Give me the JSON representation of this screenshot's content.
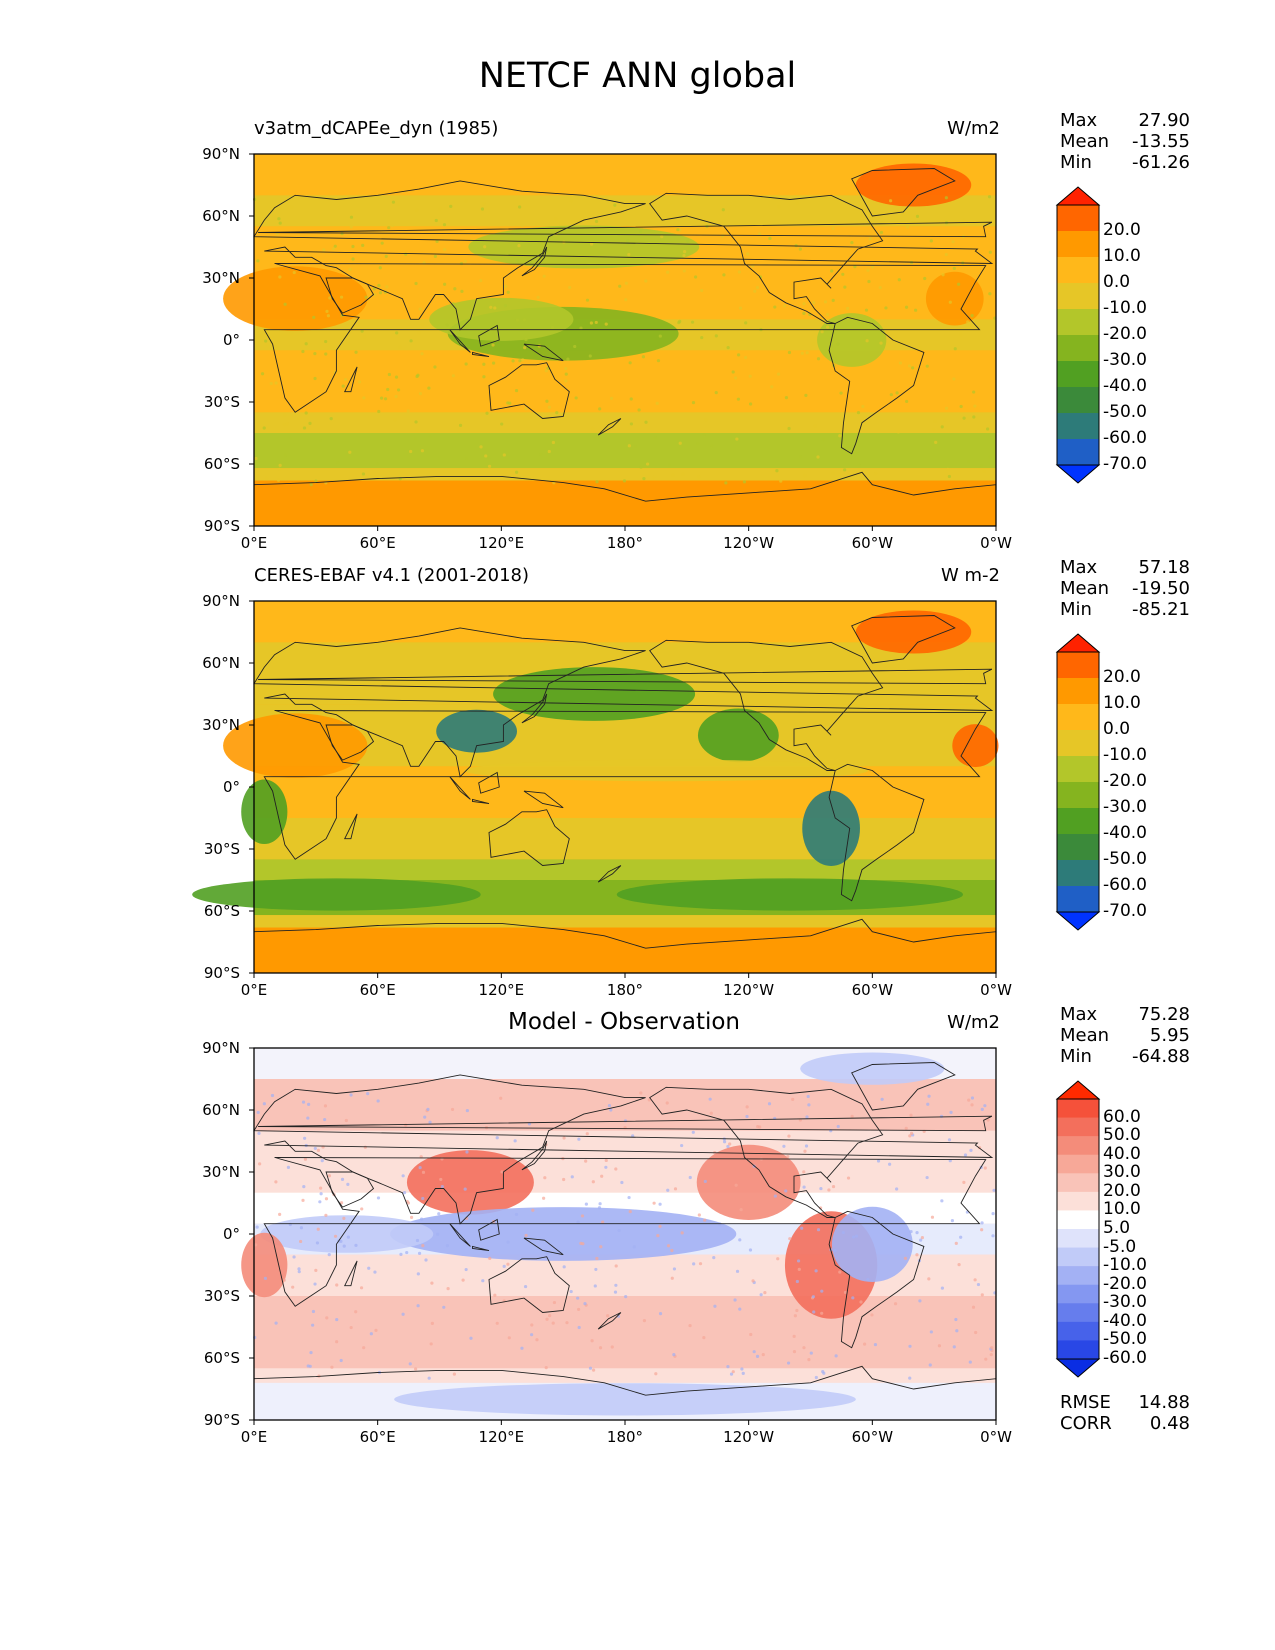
{
  "title": "NETCF ANN global",
  "axes": {
    "lat_ticks": [
      "90°N",
      "60°N",
      "30°N",
      "0°",
      "30°S",
      "60°S",
      "90°S"
    ],
    "lon_ticks": [
      "0°E",
      "60°E",
      "120°E",
      "180°",
      "120°W",
      "60°W",
      "0°W"
    ]
  },
  "panels": [
    {
      "title": "v3atm_dCAPEe_dyn (1985)",
      "title_position": "left",
      "units": "W/m2",
      "stats": [
        {
          "label": "Max",
          "value": "27.90"
        },
        {
          "label": "Mean",
          "value": "-13.55"
        },
        {
          "label": "Min",
          "value": "-61.26"
        }
      ],
      "colorbar_labels": [
        "20.0",
        "10.0",
        "0.0",
        "-10.0",
        "-20.0",
        "-30.0",
        "-40.0",
        "-50.0",
        "-60.0",
        "-70.0"
      ],
      "colorbar_colors": [
        "#ff2200",
        "#ff6600",
        "#ff9900",
        "#ffb81a",
        "#e6c627",
        "#b3c62a",
        "#85b41f",
        "#51a022",
        "#3b8a3a",
        "#2d7b79",
        "#1f5fc6",
        "#0033ff"
      ]
    },
    {
      "title": "CERES-EBAF v4.1 (2001-2018)",
      "title_position": "left",
      "units": "W m-2",
      "stats": [
        {
          "label": "Max",
          "value": "57.18"
        },
        {
          "label": "Mean",
          "value": "-19.50"
        },
        {
          "label": "Min",
          "value": "-85.21"
        }
      ],
      "colorbar_labels": [
        "20.0",
        "10.0",
        "0.0",
        "-10.0",
        "-20.0",
        "-30.0",
        "-40.0",
        "-50.0",
        "-60.0",
        "-70.0"
      ],
      "colorbar_colors": [
        "#ff2200",
        "#ff6600",
        "#ff9900",
        "#ffb81a",
        "#e6c627",
        "#b3c62a",
        "#85b41f",
        "#51a022",
        "#3b8a3a",
        "#2d7b79",
        "#1f5fc6",
        "#0033ff"
      ]
    },
    {
      "title": "Model - Observation",
      "title_position": "center",
      "units": "W/m2",
      "stats": [
        {
          "label": "Max",
          "value": "75.28"
        },
        {
          "label": "Mean",
          "value": "5.95"
        },
        {
          "label": "Min",
          "value": "-64.88"
        }
      ],
      "colorbar_labels": [
        "60.0",
        "50.0",
        "40.0",
        "30.0",
        "20.0",
        "10.0",
        "5.0",
        "-5.0",
        "-10.0",
        "-20.0",
        "-30.0",
        "-40.0",
        "-50.0",
        "-60.0"
      ],
      "colorbar_colors": [
        "#ff2a00",
        "#f5513a",
        "#f36f5c",
        "#f48c7a",
        "#f7a898",
        "#f9c3b8",
        "#fce0d9",
        "#ffffff",
        "#dfe3fb",
        "#c1cbf8",
        "#a3b1f4",
        "#8497f1",
        "#667ded",
        "#4762ea",
        "#2947e6",
        "#0a2de3"
      ],
      "extra_stats": [
        {
          "label": "RMSE",
          "value": "14.88"
        },
        {
          "label": "CORR",
          "value": "0.48"
        }
      ]
    }
  ]
}
